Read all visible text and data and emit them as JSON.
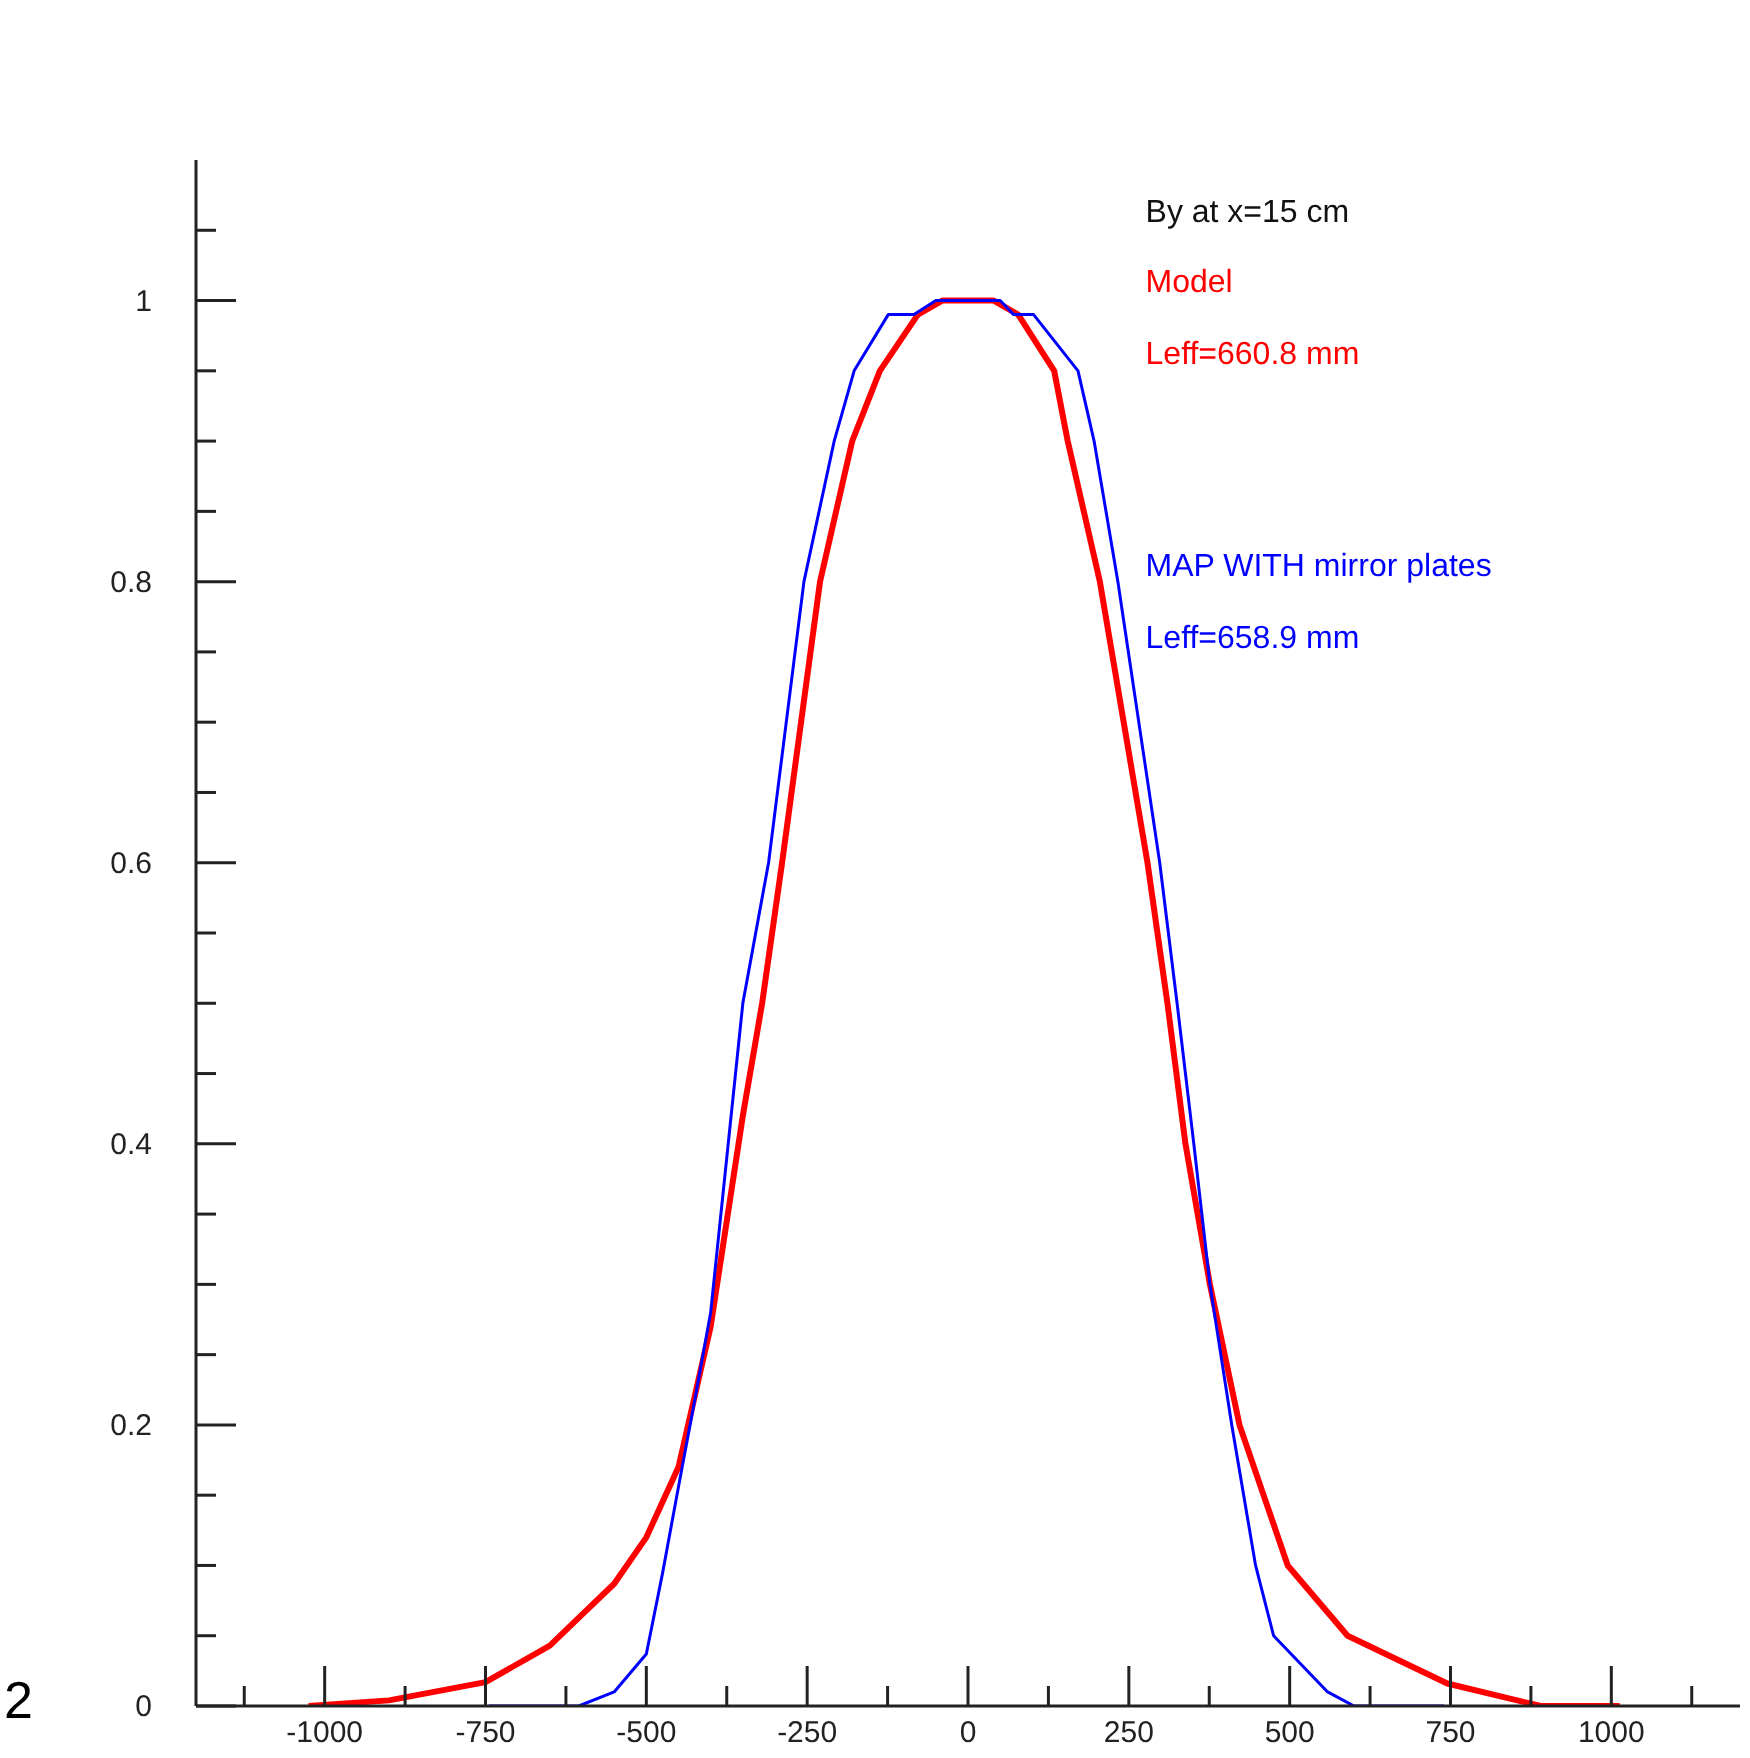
{
  "chart_data": {
    "type": "line",
    "title": "By at x=15 cm",
    "annotations": [
      "Leff=660.8 mm",
      "Leff=658.9 mm",
      "2"
    ],
    "xlim": [
      -1200,
      1200
    ],
    "xticks": [
      {
        "value": -1125,
        "label": null
      },
      -1000,
      {
        "value": -875,
        "label": null
      },
      -750,
      {
        "value": -625,
        "label": null
      },
      -500,
      {
        "value": -375,
        "label": null
      },
      -250,
      {
        "value": -125,
        "label": null
      },
      0,
      {
        "value": 125,
        "label": null
      },
      250,
      {
        "value": 375,
        "label": null
      },
      500,
      {
        "value": 625,
        "label": null
      },
      750,
      {
        "value": 875,
        "label": null
      },
      1000,
      {
        "value": 1125,
        "label": null
      }
    ],
    "ylim": [
      0,
      1.1
    ],
    "yticks": [
      0,
      {
        "value": 0.05,
        "label": null
      },
      {
        "value": 0.1,
        "label": null
      },
      {
        "value": 0.15,
        "label": null
      },
      0.2,
      {
        "value": 0.25,
        "label": null
      },
      {
        "value": 0.3,
        "label": null
      },
      {
        "value": 0.35,
        "label": null
      },
      0.4,
      {
        "value": 0.45,
        "label": null
      },
      {
        "value": 0.5,
        "label": null
      },
      {
        "value": 0.55,
        "label": null
      },
      0.6,
      {
        "value": 0.65,
        "label": null
      },
      {
        "value": 0.7,
        "label": null
      },
      {
        "value": 0.75,
        "label": null
      },
      0.8,
      {
        "value": 0.85,
        "label": null
      },
      {
        "value": 0.9,
        "label": null
      },
      {
        "value": 0.95,
        "label": null
      },
      1,
      {
        "value": 1.05,
        "label": null
      }
    ],
    "series": [
      {
        "name": "Model",
        "color": "#ff0000",
        "x": [
          -1025,
          -900,
          -750,
          -650,
          -600,
          -550,
          -500,
          -450,
          -400,
          -350,
          -320,
          -289,
          -230,
          -180,
          -137,
          -78,
          -40,
          0,
          40,
          78,
          134,
          155,
          205,
          279,
          310,
          338,
          376,
          422,
          497,
          590,
          745,
          890,
          1013
        ],
        "values": [
          0,
          0.004,
          0.017,
          0.043,
          0.065,
          0.087,
          0.12,
          0.17,
          0.27,
          0.42,
          0.5,
          0.6,
          0.8,
          0.9,
          0.95,
          0.99,
          1,
          1,
          1,
          0.99,
          0.95,
          0.9,
          0.8,
          0.6,
          0.5,
          0.4,
          0.3,
          0.2,
          0.1,
          0.05,
          0.016,
          0,
          0
        ]
      },
      {
        "name": "MAP WITH mirror plates",
        "color": "#0000ff",
        "x": [
          -745,
          -605,
          -550,
          -500,
          -475,
          -450,
          -425,
          -400,
          -350,
          -310,
          -255,
          -208,
          -177,
          -124,
          -84,
          -50,
          0,
          50,
          71,
          102,
          171,
          196,
          233,
          298,
          325,
          351,
          376,
          410,
          447,
          475,
          559,
          600,
          740
        ],
        "values": [
          0,
          0,
          0.01,
          0.037,
          0.094,
          0.156,
          0.217,
          0.28,
          0.5,
          0.6,
          0.8,
          0.9,
          0.95,
          0.99,
          0.99,
          1,
          1,
          1,
          0.99,
          0.99,
          0.95,
          0.9,
          0.8,
          0.6,
          0.5,
          0.4,
          0.3,
          0.2,
          0.1,
          0.05,
          0.01,
          0,
          0
        ]
      }
    ]
  }
}
